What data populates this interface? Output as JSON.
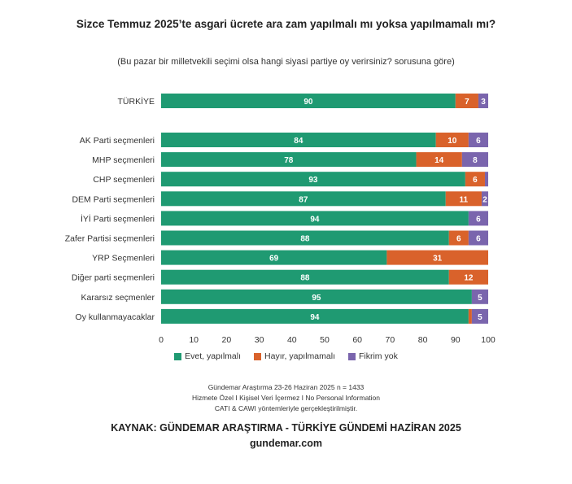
{
  "title": "Sizce Temmuz 2025’te asgari ücrete ara zam yapılmalı mı yoksa yapılmamalı mı?",
  "subtitle": "(Bu pazar bir milletvekili seçimi olsa hangi siyasi partiye oy verirsiniz? sorusuna göre)",
  "colors": {
    "evet": "#1f9a72",
    "hayir": "#d9622b",
    "fikrim": "#7a65ad"
  },
  "chart_data": {
    "type": "bar",
    "orientation": "horizontal",
    "stacked": true,
    "categories": [
      "TÜRKİYE",
      "AK Parti seçmenleri",
      "MHP seçmenleri",
      "CHP seçmenleri",
      "DEM Parti seçmenleri",
      "İYİ Parti seçmenleri",
      "Zafer Partisi seçmenleri",
      "YRP Seçmenleri",
      "Diğer parti seçmenleri",
      "Kararsız seçmenler",
      "Oy kullanmayacaklar"
    ],
    "series": [
      {
        "name": "Evet, yapılmalı",
        "values": [
          90,
          84,
          78,
          93,
          87,
          94,
          88,
          69,
          88,
          95,
          94
        ]
      },
      {
        "name": "Hayır, yapılmamalı",
        "values": [
          7,
          10,
          14,
          6,
          11,
          0,
          6,
          31,
          12,
          0,
          1
        ]
      },
      {
        "name": "Fikrim yok",
        "values": [
          3,
          6,
          8,
          1,
          2,
          6,
          6,
          0,
          0,
          5,
          5
        ]
      }
    ],
    "xlim": [
      0,
      100
    ],
    "xticks": [
      0,
      10,
      20,
      30,
      40,
      50,
      60,
      70,
      80,
      90,
      100
    ],
    "legend_position": "bottom",
    "grid": false
  },
  "notes": [
    "Gündemar Araştırma 23-26 Haziran 2025 n = 1433",
    "Hizmete Özel I Kişisel Veri İçermez I No Personal Information",
    "CATI & CAWI yöntemleriyle gerçekleştirilmiştir."
  ],
  "source": "KAYNAK: GÜNDEMAR ARAŞTIRMA - TÜRKİYE GÜNDEMİ HAZİRAN 2025",
  "website": "gundemar.com"
}
